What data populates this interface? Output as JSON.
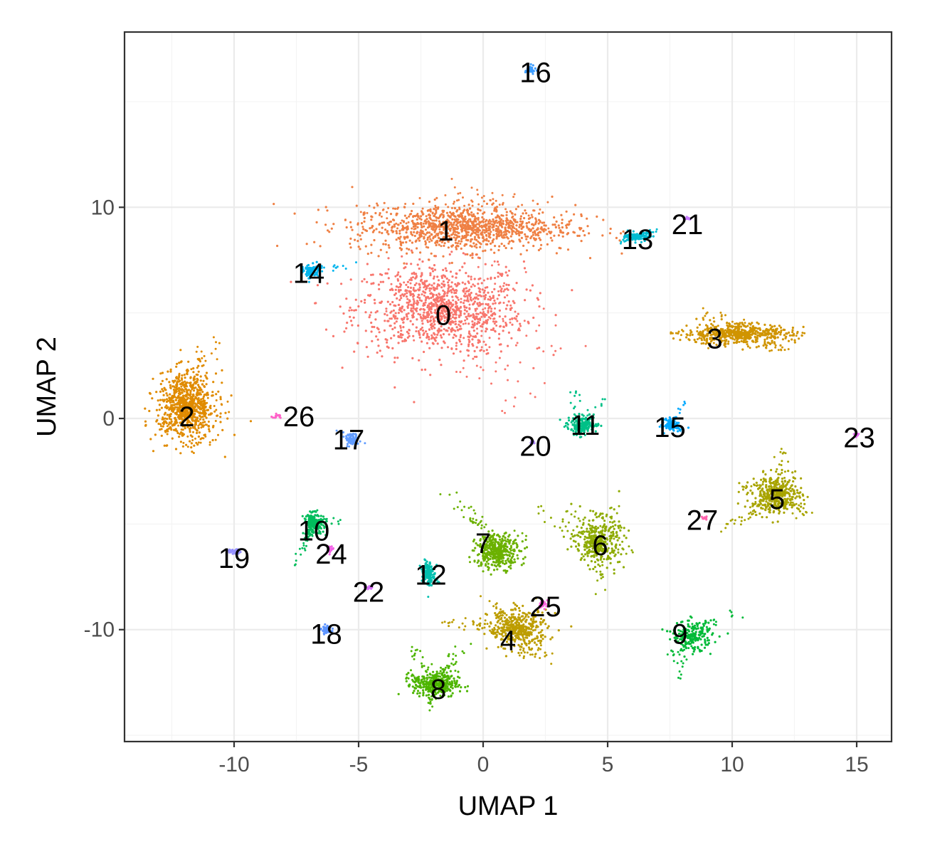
{
  "chart_data": {
    "type": "scatter",
    "title": "",
    "xlabel": "UMAP 1",
    "ylabel": "UMAP 2",
    "xlim": [
      -14.4,
      16.4
    ],
    "ylim": [
      -15.3,
      18.3
    ],
    "x_ticks": [
      -10,
      -5,
      0,
      5,
      10,
      15
    ],
    "y_ticks": [
      -10,
      0,
      10
    ],
    "x_tick_labels": [
      "-10",
      "-5",
      "0",
      "5",
      "10",
      "15"
    ],
    "y_tick_labels": [
      "-10",
      "0",
      "10"
    ],
    "grid": true,
    "legend": "none",
    "clusters": [
      {
        "id": "0",
        "color": "#F8766D",
        "label_x": -1.6,
        "label_y": 4.9,
        "center_x": -1.8,
        "center_y": 5.2,
        "spread_x": 3.4,
        "spread_y": 2.2,
        "n": 1200,
        "points": [
          [
            -4.0,
            4.6
          ],
          [
            -3.5,
            7.0
          ],
          [
            1.5,
            6.5
          ],
          [
            2.0,
            4.5
          ],
          [
            0.8,
            2.5
          ],
          [
            1.0,
            0.8
          ],
          [
            1.2,
            0.5
          ],
          [
            3.3,
            3.2
          ],
          [
            2.2,
            3.8
          ],
          [
            0.5,
            6.8
          ],
          [
            -2.5,
            6.0
          ],
          [
            -1.0,
            4.8
          ]
        ]
      },
      {
        "id": "1",
        "color": "#EF8044",
        "label_x": -1.5,
        "label_y": 8.9,
        "center_x": -0.8,
        "center_y": 9.0,
        "spread_x": 4.5,
        "spread_y": 1.1,
        "n": 1200,
        "points": [
          [
            -4.6,
            9.3
          ],
          [
            -4.2,
            10.0
          ],
          [
            -0.5,
            11.0
          ],
          [
            2.5,
            10.2
          ],
          [
            2.6,
            9.0
          ],
          [
            -3.0,
            8.0
          ],
          [
            0.2,
            10.8
          ],
          [
            1.8,
            9.5
          ],
          [
            -2.0,
            9.8
          ],
          [
            1.0,
            8.5
          ]
        ]
      },
      {
        "id": "2",
        "color": "#E08B00",
        "label_x": -11.9,
        "label_y": 0.1,
        "center_x": -11.9,
        "center_y": 0.6,
        "spread_x": 1.2,
        "spread_y": 1.6,
        "n": 900,
        "points": [
          [
            -12.8,
            -0.5
          ],
          [
            -11.0,
            3.4
          ],
          [
            -10.4,
            0.5
          ],
          [
            -11.5,
            -1.6
          ],
          [
            -12.3,
            1.8
          ],
          [
            -11.0,
            -1.0
          ]
        ]
      },
      {
        "id": "3",
        "color": "#D09400",
        "label_x": 9.3,
        "label_y": 3.8,
        "center_x": 10.2,
        "center_y": 4.0,
        "spread_x": 2.2,
        "spread_y": 0.5,
        "n": 600,
        "points": [
          [
            7.6,
            4.0
          ],
          [
            9.0,
            5.2
          ],
          [
            13.1,
            4.0
          ],
          [
            12.0,
            3.2
          ],
          [
            10.5,
            4.6
          ],
          [
            8.5,
            3.4
          ]
        ]
      },
      {
        "id": "4",
        "color": "#BD9D00",
        "label_x": 1.0,
        "label_y": -10.5,
        "center_x": 1.4,
        "center_y": -10.0,
        "spread_x": 1.2,
        "spread_y": 0.9,
        "n": 500,
        "points": [
          [
            -1.8,
            -9.6
          ],
          [
            0.0,
            -8.5
          ],
          [
            2.6,
            -11.5
          ],
          [
            1.8,
            -11.2
          ],
          [
            0.5,
            -9.2
          ]
        ]
      },
      {
        "id": "5",
        "color": "#A8A400",
        "label_x": 11.8,
        "label_y": -3.8,
        "center_x": 11.8,
        "center_y": -3.6,
        "spread_x": 1.0,
        "spread_y": 0.9,
        "n": 500,
        "points": [
          [
            9.6,
            -5.2
          ],
          [
            10.2,
            -3.2
          ],
          [
            12.0,
            -1.6
          ],
          [
            13.0,
            -4.5
          ],
          [
            11.0,
            -4.2
          ]
        ]
      },
      {
        "id": "6",
        "color": "#8EAB00",
        "label_x": 4.7,
        "label_y": -6.0,
        "center_x": 4.6,
        "center_y": -5.8,
        "spread_x": 0.9,
        "spread_y": 1.1,
        "n": 450,
        "points": [
          [
            2.2,
            -4.4
          ],
          [
            3.6,
            -4.5
          ],
          [
            5.2,
            -4.2
          ],
          [
            6.0,
            -6.3
          ],
          [
            4.8,
            -8.2
          ],
          [
            4.4,
            -6.5
          ]
        ]
      },
      {
        "id": "7",
        "color": "#6BB100",
        "label_x": 0.0,
        "label_y": -5.9,
        "center_x": 0.6,
        "center_y": -6.3,
        "spread_x": 0.9,
        "spread_y": 0.8,
        "n": 450,
        "points": [
          [
            -1.8,
            -2.8
          ],
          [
            -1.0,
            -4.2
          ],
          [
            -0.4,
            -4.6
          ],
          [
            1.7,
            -5.6
          ],
          [
            -0.6,
            -7.0
          ],
          [
            0.5,
            -6.0
          ]
        ]
      },
      {
        "id": "8",
        "color": "#4DB500",
        "label_x": -1.8,
        "label_y": -12.8,
        "center_x": -1.9,
        "center_y": -12.6,
        "spread_x": 0.9,
        "spread_y": 0.6,
        "n": 450,
        "points": [
          [
            -3.0,
            -12.2
          ],
          [
            -1.0,
            -11.0
          ],
          [
            -0.6,
            -10.5
          ],
          [
            -2.2,
            -13.6
          ],
          [
            -2.9,
            -10.8
          ]
        ]
      },
      {
        "id": "9",
        "color": "#00BA38",
        "label_x": 7.9,
        "label_y": -10.2,
        "center_x": 8.4,
        "center_y": -10.3,
        "spread_x": 0.8,
        "spread_y": 0.7,
        "n": 260,
        "points": [
          [
            7.4,
            -11.5
          ],
          [
            7.8,
            -12.4
          ],
          [
            8.5,
            -9.8
          ],
          [
            10.2,
            -9.2
          ],
          [
            9.2,
            -9.6
          ]
        ]
      },
      {
        "id": "10",
        "color": "#00BD5C",
        "label_x": -6.8,
        "label_y": -5.3,
        "center_x": -6.8,
        "center_y": -5.0,
        "spread_x": 0.4,
        "spread_y": 0.5,
        "n": 220,
        "points": [
          [
            -7.6,
            -7.0
          ],
          [
            -7.2,
            -6.2
          ],
          [
            -6.2,
            -4.8
          ],
          [
            -5.6,
            -4.8
          ],
          [
            -6.8,
            -4.2
          ]
        ]
      },
      {
        "id": "11",
        "color": "#00C087",
        "label_x": 4.1,
        "label_y": -0.3,
        "center_x": 4.0,
        "center_y": -0.3,
        "spread_x": 0.6,
        "spread_y": 0.4,
        "n": 220,
        "points": [
          [
            3.3,
            -0.3
          ],
          [
            3.6,
            1.3
          ],
          [
            4.9,
            0.9
          ],
          [
            4.7,
            -0.3
          ],
          [
            3.9,
            -0.9
          ]
        ]
      },
      {
        "id": "12",
        "color": "#00C0AF",
        "label_x": -2.1,
        "label_y": -7.4,
        "center_x": -2.2,
        "center_y": -7.3,
        "spread_x": 0.2,
        "spread_y": 0.6,
        "n": 160,
        "points": [
          [
            -2.4,
            -6.6
          ],
          [
            -2.2,
            -8.6
          ],
          [
            -1.8,
            -7.8
          ],
          [
            -2.6,
            -7.0
          ]
        ]
      },
      {
        "id": "13",
        "color": "#00BCD2",
        "label_x": 6.2,
        "label_y": 8.5,
        "center_x": 6.2,
        "center_y": 8.6,
        "spread_x": 0.5,
        "spread_y": 0.2,
        "n": 140,
        "points": [
          [
            5.5,
            8.3
          ],
          [
            7.3,
            9.0
          ],
          [
            6.8,
            8.9
          ]
        ]
      },
      {
        "id": "14",
        "color": "#00B5EE",
        "label_x": -7.0,
        "label_y": 6.9,
        "center_x": -6.9,
        "center_y": 7.0,
        "spread_x": 0.3,
        "spread_y": 0.3,
        "n": 130,
        "points": [
          [
            -7.4,
            7.3
          ],
          [
            -5.4,
            7.2
          ],
          [
            -4.6,
            7.5
          ],
          [
            -7.0,
            6.3
          ],
          [
            -6.5,
            7.2
          ]
        ]
      },
      {
        "id": "15",
        "color": "#00A9FF",
        "label_x": 7.5,
        "label_y": -0.4,
        "center_x": 7.6,
        "center_y": -0.3,
        "spread_x": 0.3,
        "spread_y": 0.3,
        "n": 120,
        "points": [
          [
            7.1,
            -0.4
          ],
          [
            8.1,
            0.8
          ],
          [
            8.0,
            -0.7
          ]
        ]
      },
      {
        "id": "16",
        "color": "#3D9CFF",
        "label_x": 2.1,
        "label_y": 16.4,
        "center_x": 1.9,
        "center_y": 16.5,
        "spread_x": 0.2,
        "spread_y": 0.2,
        "n": 50,
        "points": []
      },
      {
        "id": "17",
        "color": "#619CFF",
        "label_x": -5.4,
        "label_y": -1.0,
        "center_x": -5.3,
        "center_y": -1.0,
        "spread_x": 0.3,
        "spread_y": 0.3,
        "n": 70,
        "points": [
          [
            -5.8,
            -0.6
          ],
          [
            -4.8,
            -1.1
          ],
          [
            -5.5,
            -1.5
          ]
        ]
      },
      {
        "id": "18",
        "color": "#5D94FF",
        "label_x": -6.3,
        "label_y": -10.2,
        "center_x": -6.3,
        "center_y": -10.0,
        "spread_x": 0.2,
        "spread_y": 0.2,
        "n": 60,
        "points": []
      },
      {
        "id": "19",
        "color": "#9590FF",
        "label_x": -10.0,
        "label_y": -6.6,
        "center_x": -10.0,
        "center_y": -6.3,
        "spread_x": 0.3,
        "spread_y": 0.1,
        "n": 40,
        "points": []
      },
      {
        "id": "20",
        "color": "#AC88FF",
        "label_x": 2.1,
        "label_y": -1.3,
        "center_x": 2.0,
        "center_y": -1.1,
        "spread_x": 0.1,
        "spread_y": 0.1,
        "n": 15,
        "points": []
      },
      {
        "id": "21",
        "color": "#C77CFF",
        "label_x": 8.2,
        "label_y": 9.2,
        "center_x": 8.2,
        "center_y": 9.5,
        "spread_x": 0.1,
        "spread_y": 0.1,
        "n": 12,
        "points": []
      },
      {
        "id": "22",
        "color": "#DB72FB",
        "label_x": -4.6,
        "label_y": -8.2,
        "center_x": -4.6,
        "center_y": -8.0,
        "spread_x": 0.2,
        "spread_y": 0.1,
        "n": 20,
        "points": []
      },
      {
        "id": "23",
        "color": "#E76BF3",
        "label_x": 15.1,
        "label_y": -0.9,
        "center_x": 15.0,
        "center_y": -0.8,
        "spread_x": 0.1,
        "spread_y": 0.1,
        "n": 12,
        "points": []
      },
      {
        "id": "24",
        "color": "#F265E7",
        "label_x": -6.1,
        "label_y": -6.4,
        "center_x": -6.1,
        "center_y": -6.2,
        "spread_x": 0.1,
        "spread_y": 0.2,
        "n": 20,
        "points": []
      },
      {
        "id": "25",
        "color": "#FA62DB",
        "label_x": 2.5,
        "label_y": -8.9,
        "center_x": 2.4,
        "center_y": -8.8,
        "spread_x": 0.2,
        "spread_y": 0.2,
        "n": 25,
        "points": []
      },
      {
        "id": "26",
        "color": "#FF61C9",
        "label_x": -7.4,
        "label_y": 0.1,
        "center_x": -8.3,
        "center_y": 0.1,
        "spread_x": 0.2,
        "spread_y": 0.1,
        "n": 15,
        "points": []
      },
      {
        "id": "27",
        "color": "#FF65AE",
        "label_x": 8.8,
        "label_y": -4.8,
        "center_x": 8.9,
        "center_y": -4.7,
        "spread_x": 0.1,
        "spread_y": 0.1,
        "n": 15,
        "points": []
      }
    ]
  }
}
